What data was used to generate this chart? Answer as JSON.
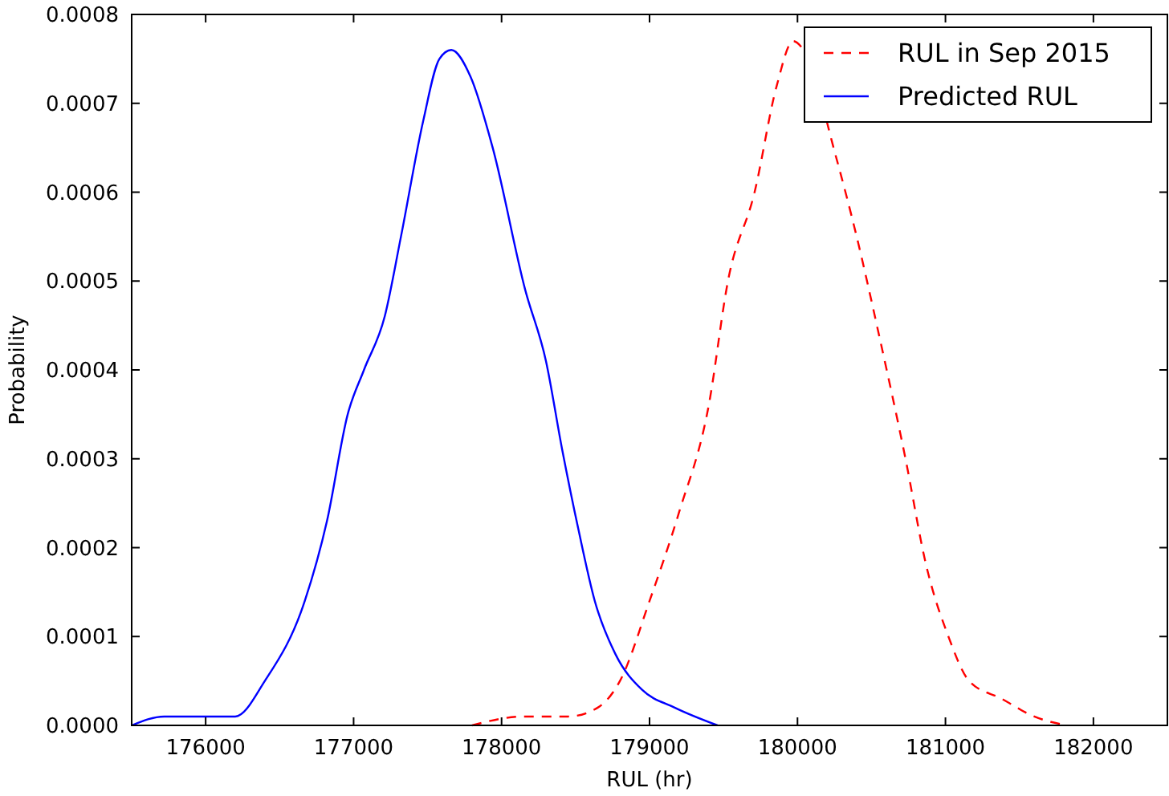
{
  "chart_data": {
    "type": "line",
    "xlabel": "RUL (hr)",
    "ylabel": "Probability",
    "xlim": [
      175500,
      182500
    ],
    "xticks": [
      176000,
      177000,
      178000,
      179000,
      180000,
      181000,
      182000
    ],
    "ylim": [
      0,
      0.0008
    ],
    "yticks": [
      {
        "value": 0,
        "label": "0.0000"
      },
      {
        "value": 0.0001,
        "label": "0.0001"
      },
      {
        "value": 0.0002,
        "label": "0.0002"
      },
      {
        "value": 0.0003,
        "label": "0.0003"
      },
      {
        "value": 0.0004,
        "label": "0.0004"
      },
      {
        "value": 0.0005,
        "label": "0.0005"
      },
      {
        "value": 0.0006,
        "label": "0.0006"
      },
      {
        "value": 0.0007,
        "label": "0.0007"
      },
      {
        "value": 0.0008,
        "label": "0.0008"
      }
    ],
    "legend": "top right",
    "series": [
      {
        "name": "RUL in Sep 2015",
        "color": "#ff0000",
        "line_style": "dashed",
        "x": [
          177800,
          178150,
          178250,
          178450,
          178650,
          178800,
          179000,
          179200,
          179400,
          179530,
          179710,
          179860,
          179970,
          180040,
          180260,
          180400,
          180550,
          180730,
          180870,
          181020,
          181160,
          181380,
          181600,
          181820
        ],
        "values": [
          0,
          1e-05,
          1e-05,
          1e-05,
          2e-05,
          5e-05,
          0.00014,
          0.00024,
          0.00036,
          0.0005,
          0.0006,
          0.00072,
          0.00077,
          0.00076,
          0.00064,
          0.00055,
          0.00044,
          0.0003,
          0.00018,
          0.0001,
          5e-05,
          3e-05,
          1e-05,
          0
        ]
      },
      {
        "name": "Predicted RUL",
        "color": "#0000ff",
        "line_style": "solid",
        "x": [
          175500,
          175720,
          176000,
          176200,
          176400,
          176670,
          176820,
          176960,
          177070,
          177210,
          177320,
          177470,
          177580,
          177660,
          177790,
          177940,
          178160,
          178300,
          178410,
          178520,
          178630,
          178770,
          178950,
          179170,
          179460
        ],
        "values": [
          0,
          1e-05,
          1e-05,
          1e-05,
          5e-05,
          0.00014,
          0.00023,
          0.00035,
          0.0004,
          0.00046,
          0.00055,
          0.00068,
          0.00075,
          0.00076,
          0.00073,
          0.00065,
          0.00049,
          0.00041,
          0.00031,
          0.00022,
          0.00014,
          8e-05,
          4e-05,
          2e-05,
          0
        ]
      }
    ]
  }
}
